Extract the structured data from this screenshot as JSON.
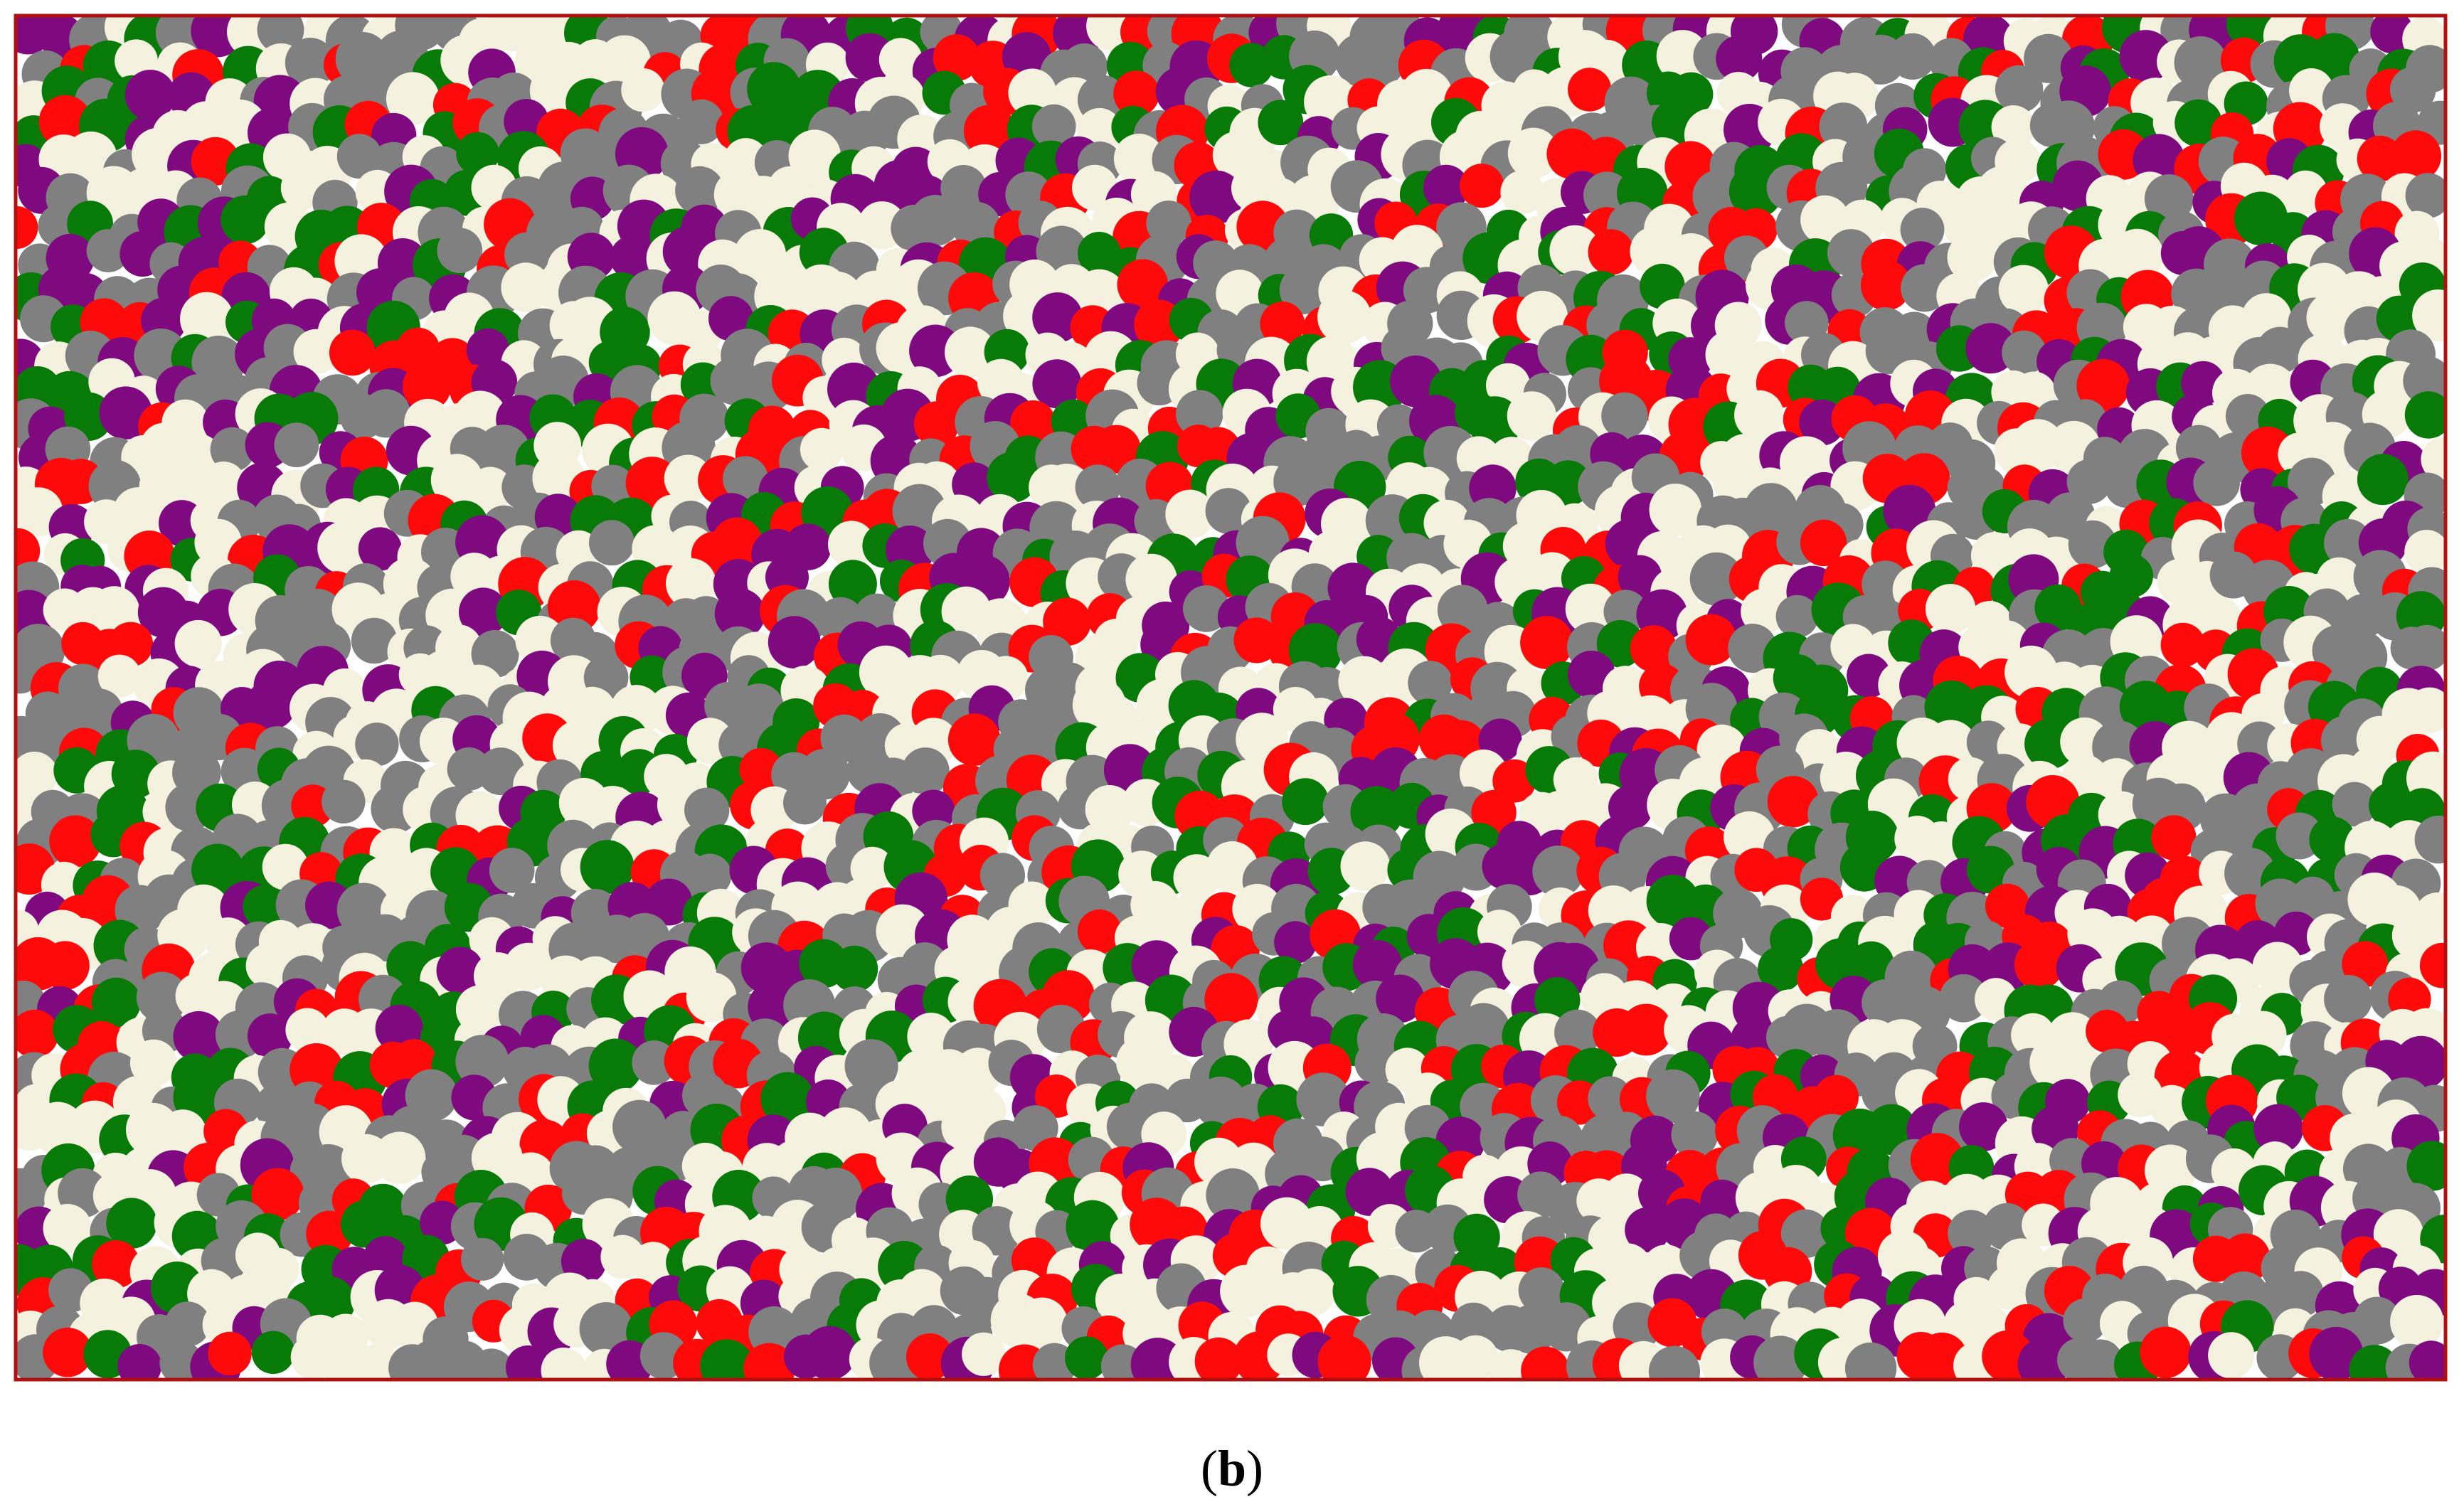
{
  "caption": {
    "open": "(",
    "letter": "b",
    "close": ")"
  }
}
